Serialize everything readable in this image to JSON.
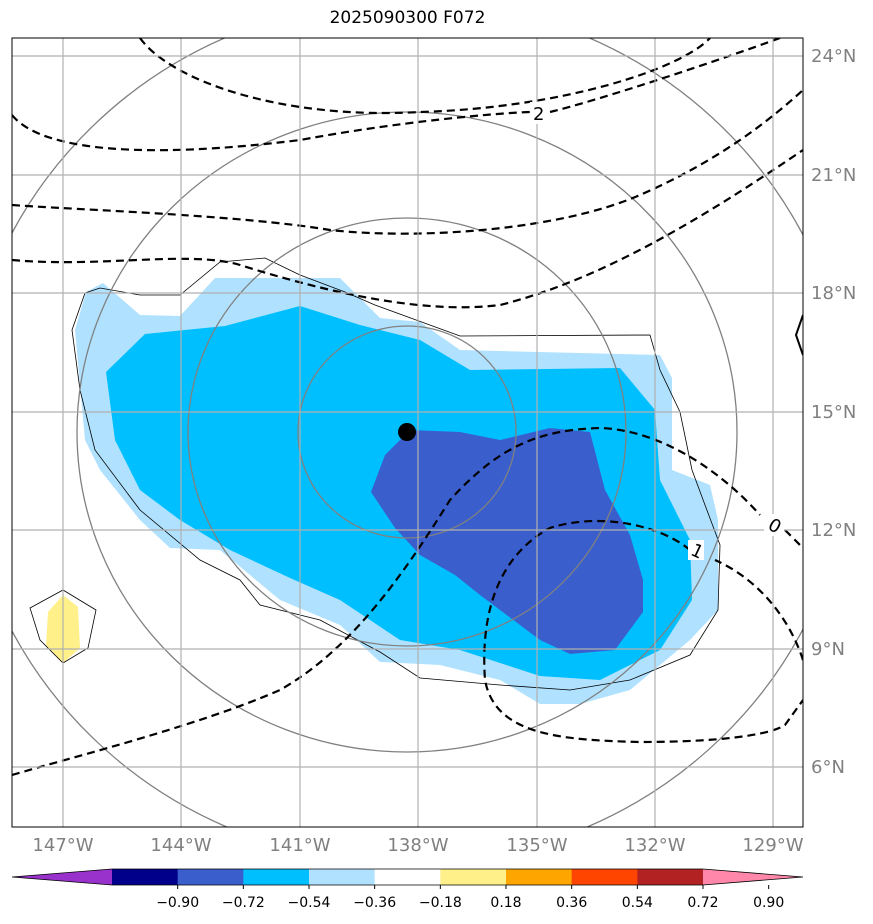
{
  "title": "2025090300 F072",
  "lat_labels": [
    "24°N",
    "21°N",
    "18°N",
    "15°N",
    "12°N",
    "9°N",
    "6°N"
  ],
  "lon_labels": [
    "147°W",
    "144°W",
    "141°W",
    "138°W",
    "135°W",
    "132°W",
    "129°W"
  ],
  "contour_labels": [
    "2",
    "0",
    "1"
  ],
  "colorbar": {
    "ticks": [
      "−0.90",
      "−0.72",
      "−0.54",
      "−0.36",
      "−0.18",
      "0.18",
      "0.36",
      "0.54",
      "0.72",
      "0.90"
    ],
    "colors": [
      "#9932cc",
      "#00008b",
      "#3a5fcd",
      "#00bfff",
      "#b0e2ff",
      "#ffffff",
      "#fff08a",
      "#ffa500",
      "#ff4500",
      "#b22222",
      "#ff88aa"
    ]
  },
  "fill_colors": {
    "light_blue": "#b0e2ff",
    "sky_blue": "#00bfff",
    "royal_blue": "#3a5fcd",
    "yellow": "#fff08a"
  },
  "center_marker": {
    "lon": -138.3,
    "lat": 14.5
  }
}
